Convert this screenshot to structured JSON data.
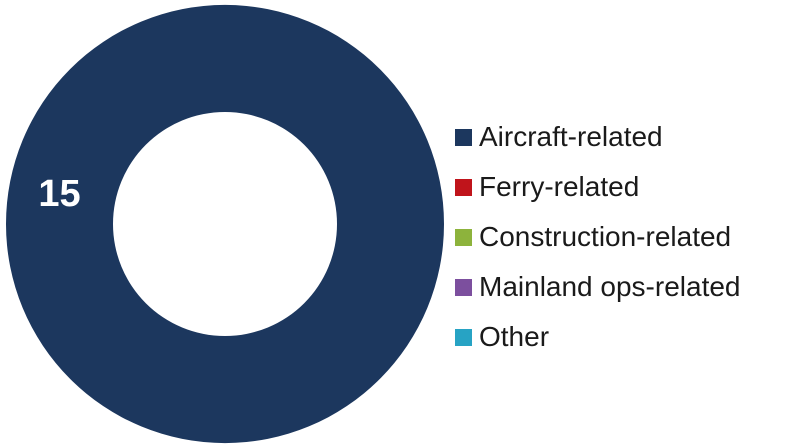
{
  "chart_data": {
    "type": "pie",
    "donut": true,
    "categories": [
      "Aircraft-related",
      "Ferry-related",
      "Construction-related",
      "Mainland ops-related",
      "Other"
    ],
    "values": [
      15,
      0,
      0,
      0,
      0
    ],
    "colors": [
      "#1c375e",
      "#c0141b",
      "#8db33c",
      "#7c4f9e",
      "#27a3c4"
    ],
    "data_labels": [
      "15"
    ],
    "title": "",
    "legend_position": "right"
  }
}
